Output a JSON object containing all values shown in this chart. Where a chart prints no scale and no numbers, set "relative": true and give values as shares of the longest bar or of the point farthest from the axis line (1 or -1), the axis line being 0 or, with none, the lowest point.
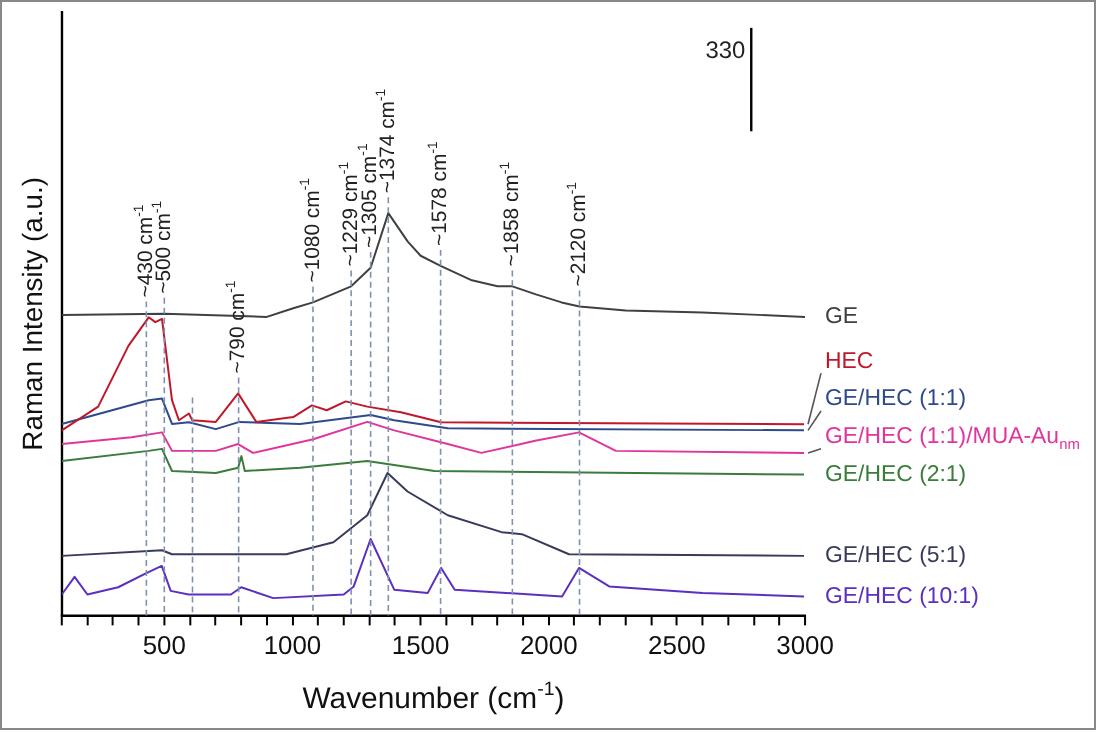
{
  "chart_data": {
    "type": "line",
    "relative": true,
    "xlabel": "Wavenumber (cm$^{-1}$)",
    "ylabel": "Raman Intensity (a.u.)",
    "xlim": [
      100,
      3000
    ],
    "xticks": [
      {
        "value": 100,
        "label": null
      },
      {
        "value": 200,
        "label": null
      },
      {
        "value": 300,
        "label": null
      },
      {
        "value": 400,
        "label": null
      },
      500,
      {
        "value": 600,
        "label": null
      },
      {
        "value": 700,
        "label": null
      },
      {
        "value": 800,
        "label": null
      },
      {
        "value": 900,
        "label": null
      },
      1000,
      {
        "value": 1100,
        "label": null
      },
      {
        "value": 1200,
        "label": null
      },
      {
        "value": 1300,
        "label": null
      },
      {
        "value": 1400,
        "label": null
      },
      1500,
      {
        "value": 1600,
        "label": null
      },
      {
        "value": 1700,
        "label": null
      },
      {
        "value": 1800,
        "label": null
      },
      {
        "value": 1900,
        "label": null
      },
      2000,
      {
        "value": 2100,
        "label": null
      },
      {
        "value": 2200,
        "label": null
      },
      {
        "value": 2300,
        "label": null
      },
      {
        "value": 2400,
        "label": null
      },
      2500,
      {
        "value": 2600,
        "label": null
      },
      {
        "value": 2700,
        "label": null
      },
      {
        "value": 2800,
        "label": null
      },
      {
        "value": 2900,
        "label": null
      },
      3000
    ],
    "legend": false,
    "grid": false,
    "marker": "none",
    "line_style": "solid",
    "series": [
      {
        "name": "GE",
        "color": "#404040",
        "x": [
          100,
          500,
          900,
          1000,
          1080,
          1229,
          1305,
          1374,
          1450,
          1500,
          1578,
          1700,
          1800,
          1858,
          1950,
          2050,
          2120,
          2300,
          2600,
          3000
        ],
        "values": [
          0.747,
          0.75,
          0.742,
          0.763,
          0.778,
          0.818,
          0.864,
          1.0,
          0.929,
          0.894,
          0.869,
          0.833,
          0.818,
          0.818,
          0.798,
          0.778,
          0.768,
          0.758,
          0.753,
          0.742
        ]
      },
      {
        "name": "HEC",
        "color": "#c0182a",
        "x": [
          100,
          242,
          360,
          439,
          465,
          491,
          530,
          557,
          596,
          609,
          701,
          788,
          859,
          1003,
          1076,
          1134,
          1208,
          1292,
          1423,
          1580,
          2996
        ],
        "values": [
          0.46,
          0.519,
          0.67,
          0.741,
          0.729,
          0.737,
          0.535,
          0.485,
          0.502,
          0.485,
          0.481,
          0.552,
          0.481,
          0.493,
          0.522,
          0.51,
          0.532,
          0.519,
          0.505,
          0.48,
          0.475
        ]
      },
      {
        "name": "GE/HEC (1:1)",
        "color": "#2f4a8c",
        "x": [
          100,
          439,
          491,
          530,
          596,
          701,
          793,
          1030,
          1305,
          1397,
          1606,
          2996
        ],
        "values": [
          0.476,
          0.535,
          0.539,
          0.476,
          0.48,
          0.463,
          0.481,
          0.476,
          0.498,
          0.485,
          0.465,
          0.46
        ]
      },
      {
        "name": "GE/HEC (1:1)/MUA-Au$_{nm}$",
        "color": "#e0359c",
        "x": [
          100,
          373,
          491,
          530,
          701,
          788,
          846,
          1081,
          1292,
          1397,
          1606,
          1737,
          1947,
          2118,
          2262,
          2996
        ],
        "values": [
          0.426,
          0.443,
          0.455,
          0.409,
          0.409,
          0.426,
          0.404,
          0.438,
          0.481,
          0.46,
          0.426,
          0.404,
          0.434,
          0.455,
          0.409,
          0.404
        ]
      },
      {
        "name": "GE/HEC (2:1)",
        "color": "#3a7d3a",
        "x": [
          100,
          439,
          491,
          530,
          701,
          788,
          801,
          814,
          1030,
          1292,
          1554,
          2996
        ],
        "values": [
          0.384,
          0.409,
          0.414,
          0.359,
          0.354,
          0.367,
          0.396,
          0.359,
          0.367,
          0.384,
          0.359,
          0.35
        ]
      },
      {
        "name": "GE/HEC (5:1)",
        "color": "#383c5a",
        "x": [
          100,
          491,
          530,
          976,
          1160,
          1292,
          1371,
          1449,
          1606,
          1816,
          1895,
          2079,
          2996
        ],
        "values": [
          0.148,
          0.162,
          0.152,
          0.152,
          0.182,
          0.249,
          0.354,
          0.308,
          0.249,
          0.207,
          0.202,
          0.152,
          0.148
        ]
      },
      {
        "name": "GE/HEC (10:1)",
        "color": "#5b2fc0",
        "x": [
          100,
          150,
          200,
          320,
          430,
          490,
          525,
          595,
          760,
          800,
          925,
          1200,
          1239,
          1305,
          1397,
          1528,
          1580,
          1633,
          2052,
          2118,
          2236,
          2600,
          2996
        ],
        "values": [
          0.052,
          0.096,
          0.052,
          0.07,
          0.105,
          0.123,
          0.061,
          0.052,
          0.052,
          0.07,
          0.043,
          0.052,
          0.072,
          0.19,
          0.064,
          0.056,
          0.118,
          0.064,
          0.047,
          0.118,
          0.072,
          0.056,
          0.047
        ]
      }
    ],
    "ref_lines": [
      {
        "axis": "x",
        "value": 430,
        "label": "~430 cm$^{-1}$",
        "color": "#8090b0",
        "line_style": "dashed"
      },
      {
        "axis": "x",
        "value": 500,
        "label": "~500 cm$^{-1}$",
        "color": "#8090b0",
        "line_style": "dashed"
      },
      {
        "axis": "x",
        "value": 610,
        "label": null,
        "color": "#8090b0",
        "line_style": "dashed"
      },
      {
        "axis": "x",
        "value": 790,
        "label": "~790 cm$^{-1}$",
        "color": "#8090b0",
        "line_style": "dashed"
      },
      {
        "axis": "x",
        "value": 1080,
        "label": "~1080 cm$^{-1}$",
        "color": "#8090b0",
        "line_style": "dashed"
      },
      {
        "axis": "x",
        "value": 1229,
        "label": "~1229 cm$^{-1}$",
        "color": "#8090b0",
        "line_style": "dashed"
      },
      {
        "axis": "x",
        "value": 1305,
        "label": "~1305 cm$^{-1}$",
        "color": "#8090b0",
        "line_style": "dashed"
      },
      {
        "axis": "x",
        "value": 1374,
        "label": "~1374 cm$^{-1}$",
        "color": "#8090b0",
        "line_style": "dashed"
      },
      {
        "axis": "x",
        "value": 1578,
        "label": "~1578 cm$^{-1}$",
        "color": "#8090b0",
        "line_style": "dashed"
      },
      {
        "axis": "x",
        "value": 1858,
        "label": "~1858 cm$^{-1}$",
        "color": "#8090b0",
        "line_style": "dashed"
      },
      {
        "axis": "x",
        "value": 2120,
        "label": "~2120 cm$^{-1}$",
        "color": "#8090b0",
        "line_style": "dashed"
      }
    ],
    "annotations": [
      "330"
    ]
  }
}
